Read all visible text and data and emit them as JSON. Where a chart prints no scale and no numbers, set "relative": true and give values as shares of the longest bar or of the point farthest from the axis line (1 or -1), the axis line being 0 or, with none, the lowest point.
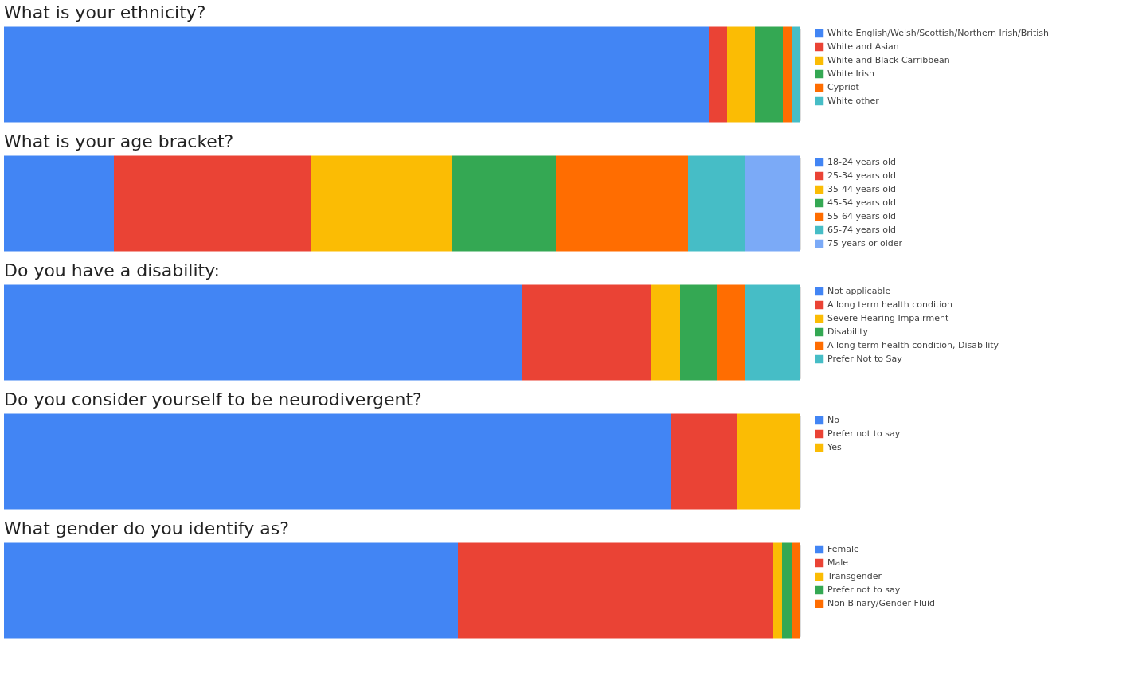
{
  "chart_data": [
    {
      "type": "bar",
      "title": "What is your ethnicity?",
      "orientation": "horizontal",
      "stacked": true,
      "relative": true,
      "legend": "right",
      "tick_labels": false,
      "categories": [
        null
      ],
      "series": [
        {
          "name": "White English/Welsh/Scottish/Northern Irish/British",
          "color": "#4285f4",
          "values": [
            0.885
          ]
        },
        {
          "name": "White and Asian",
          "color": "#ea4335",
          "values": [
            0.023
          ]
        },
        {
          "name": "White and Black Carribbean",
          "color": "#fbbc04",
          "values": [
            0.035
          ]
        },
        {
          "name": "White Irish",
          "color": "#34a853",
          "values": [
            0.035
          ]
        },
        {
          "name": "Cypriot",
          "color": "#ff6d01",
          "values": [
            0.011
          ]
        },
        {
          "name": "White other",
          "color": "#46bdc6",
          "values": [
            0.011
          ]
        }
      ]
    },
    {
      "type": "bar",
      "title": "What is your age bracket?",
      "orientation": "horizontal",
      "stacked": true,
      "relative": true,
      "legend": "right",
      "tick_labels": false,
      "categories": [
        null
      ],
      "series": [
        {
          "name": "18-24 years old",
          "color": "#4285f4",
          "values": [
            0.138
          ]
        },
        {
          "name": "25-34 years old",
          "color": "#ea4335",
          "values": [
            0.248
          ]
        },
        {
          "name": "35-44 years old",
          "color": "#fbbc04",
          "values": [
            0.177
          ]
        },
        {
          "name": "45-54 years old",
          "color": "#34a853",
          "values": [
            0.13
          ]
        },
        {
          "name": "55-64 years old",
          "color": "#ff6d01",
          "values": [
            0.166
          ]
        },
        {
          "name": "65-74 years old",
          "color": "#46bdc6",
          "values": [
            0.071
          ]
        },
        {
          "name": "75 years or older",
          "color": "#7baaf7",
          "values": [
            0.07
          ]
        }
      ]
    },
    {
      "type": "bar",
      "title": "Do you have a disability:",
      "orientation": "horizontal",
      "stacked": true,
      "relative": true,
      "legend": "right",
      "tick_labels": false,
      "categories": [
        null
      ],
      "series": [
        {
          "name": "Not applicable",
          "color": "#4285f4",
          "values": [
            0.65
          ]
        },
        {
          "name": "A long term health condition",
          "color": "#ea4335",
          "values": [
            0.163
          ]
        },
        {
          "name": "Severe Hearing Impairment",
          "color": "#fbbc04",
          "values": [
            0.036
          ]
        },
        {
          "name": "Disability",
          "color": "#34a853",
          "values": [
            0.046
          ]
        },
        {
          "name": "A long term health condition, Disability",
          "color": "#ff6d01",
          "values": [
            0.035
          ]
        },
        {
          "name": "Prefer Not to Say",
          "color": "#46bdc6",
          "values": [
            0.07
          ]
        }
      ]
    },
    {
      "type": "bar",
      "title": "Do you consider yourself to be neurodivergent?",
      "orientation": "horizontal",
      "stacked": true,
      "relative": true,
      "legend": "right",
      "tick_labels": false,
      "categories": [
        null
      ],
      "series": [
        {
          "name": "No",
          "color": "#4285f4",
          "values": [
            0.838
          ]
        },
        {
          "name": "Prefer not to say",
          "color": "#ea4335",
          "values": [
            0.082
          ]
        },
        {
          "name": "Yes",
          "color": "#fbbc04",
          "values": [
            0.08
          ]
        }
      ]
    },
    {
      "type": "bar",
      "title": "What gender do you identify as?",
      "orientation": "horizontal",
      "stacked": true,
      "relative": true,
      "legend": "right",
      "tick_labels": false,
      "categories": [
        null
      ],
      "series": [
        {
          "name": "Female",
          "color": "#4285f4",
          "values": [
            0.57
          ]
        },
        {
          "name": "Male",
          "color": "#ea4335",
          "values": [
            0.396
          ]
        },
        {
          "name": "Transgender",
          "color": "#fbbc04",
          "values": [
            0.011
          ]
        },
        {
          "name": "Prefer not to say",
          "color": "#34a853",
          "values": [
            0.012
          ]
        },
        {
          "name": "Non-Binary/Gender Fluid",
          "color": "#ff6d01",
          "values": [
            0.011
          ]
        }
      ]
    }
  ]
}
